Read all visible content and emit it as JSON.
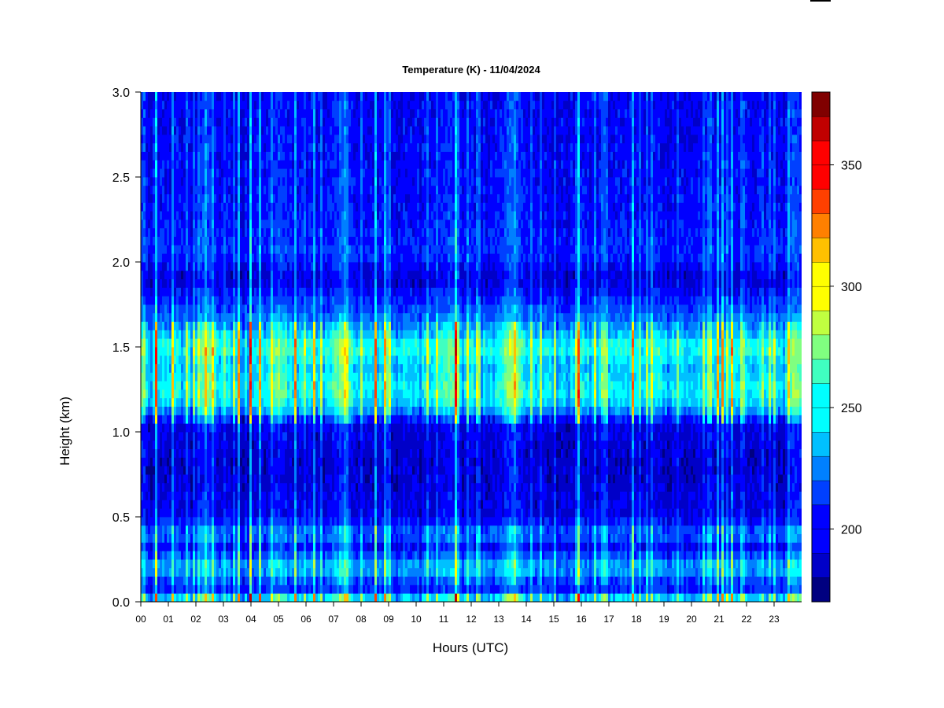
{
  "chart_data": {
    "type": "heatmap",
    "title": "Temperature (K) - 11/04/2024",
    "xlabel": "Hours (UTC)",
    "ylabel": "Height (km)",
    "x_ticks": [
      "00",
      "01",
      "02",
      "03",
      "04",
      "05",
      "06",
      "07",
      "08",
      "09",
      "10",
      "11",
      "12",
      "13",
      "14",
      "15",
      "16",
      "17",
      "18",
      "19",
      "20",
      "21",
      "22",
      "23"
    ],
    "xlim": [
      0,
      24
    ],
    "y_ticks": [
      "0.0",
      "0.5",
      "1.0",
      "1.5",
      "2.0",
      "2.5",
      "3.0"
    ],
    "ylim": [
      0,
      3.0
    ],
    "colorbar": {
      "range": [
        170,
        380
      ],
      "ticks": [
        "200",
        "250",
        "300",
        "350"
      ],
      "tick_values": [
        200,
        250,
        300,
        350
      ],
      "levels": 21
    },
    "colors": {
      "colormap": [
        "#000080",
        "#0000c8",
        "#0000ff",
        "#0040ff",
        "#0080ff",
        "#00c0ff",
        "#00ffff",
        "#40ffc0",
        "#80ff80",
        "#c0ff40",
        "#ffff00",
        "#ffc000",
        "#ff8000",
        "#ff4000",
        "#ff0000",
        "#c00000",
        "#800000"
      ]
    },
    "height_profile": [
      {
        "z": 0.0,
        "temp": 295
      },
      {
        "z": 0.03,
        "temp": 230
      },
      {
        "z": 0.08,
        "temp": 205
      },
      {
        "z": 0.15,
        "temp": 218
      },
      {
        "z": 0.2,
        "temp": 240
      },
      {
        "z": 0.25,
        "temp": 222
      },
      {
        "z": 0.32,
        "temp": 200
      },
      {
        "z": 0.4,
        "temp": 222
      },
      {
        "z": 0.5,
        "temp": 196
      },
      {
        "z": 0.8,
        "temp": 188
      },
      {
        "z": 1.05,
        "temp": 195
      },
      {
        "z": 1.15,
        "temp": 240
      },
      {
        "z": 1.25,
        "temp": 252
      },
      {
        "z": 1.38,
        "temp": 240
      },
      {
        "z": 1.5,
        "temp": 258
      },
      {
        "z": 1.6,
        "temp": 232
      },
      {
        "z": 1.75,
        "temp": 210
      },
      {
        "z": 1.9,
        "temp": 190
      },
      {
        "z": 2.05,
        "temp": 208
      },
      {
        "z": 2.25,
        "temp": 202
      },
      {
        "z": 3.0,
        "temp": 198
      }
    ],
    "warm_episodes": [
      {
        "hour": 2.4,
        "temp_anomaly": 30
      },
      {
        "hour": 5.0,
        "temp_anomaly": 25
      },
      {
        "hour": 7.3,
        "temp_anomaly": 35
      },
      {
        "hour": 11.2,
        "temp_anomaly": 20
      },
      {
        "hour": 13.5,
        "temp_anomaly": 40
      },
      {
        "hour": 23.8,
        "temp_anomaly": 35
      }
    ]
  }
}
